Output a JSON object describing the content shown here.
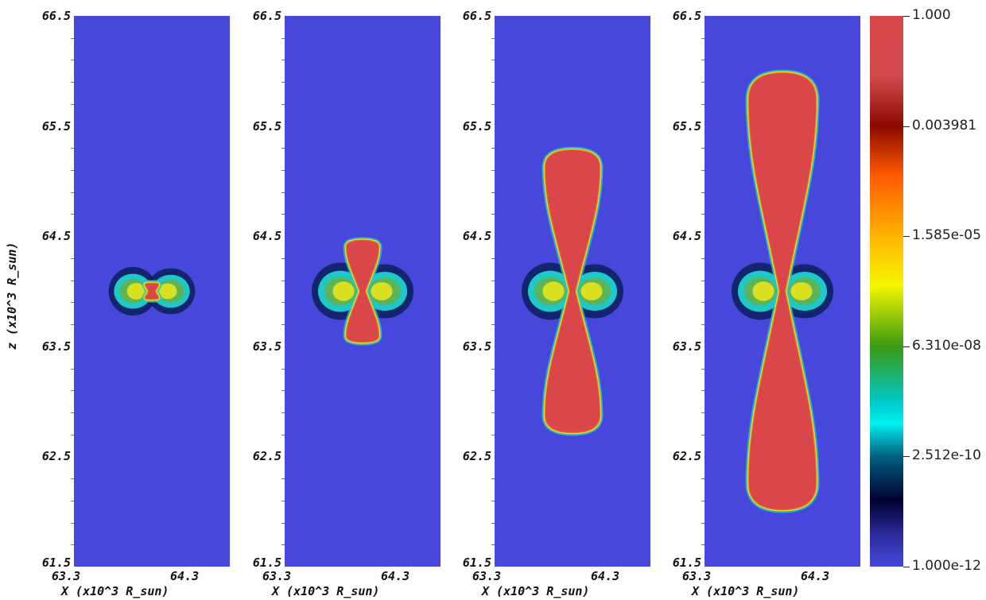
{
  "axes": {
    "y_ticks": [
      "66.5",
      "65.5",
      "64.5",
      "63.5",
      "62.5",
      "61.5"
    ],
    "x_ticks": [
      "63.3",
      "64.3"
    ],
    "x_label": "X (x10^3 R_sun)",
    "z_label": "z (x10^3 R_sun)"
  },
  "colorbar": {
    "labels": [
      "1.000",
      "0.003981",
      "1.585e-05",
      "6.310e-08",
      "2.512e-10",
      "1.000e-12"
    ]
  },
  "colors": {
    "background": "#4747db",
    "jet": "#d9474a"
  },
  "panels": [
    {
      "name": "panel-1",
      "jet_half_height": 0.07,
      "shell_scale": 0.85
    },
    {
      "name": "panel-2",
      "jet_half_height": 0.46,
      "shell_scale": 1.0
    },
    {
      "name": "panel-3",
      "jet_half_height": 1.28,
      "shell_scale": 1.0
    },
    {
      "name": "panel-4",
      "jet_half_height": 1.98,
      "shell_scale": 1.0
    }
  ]
}
